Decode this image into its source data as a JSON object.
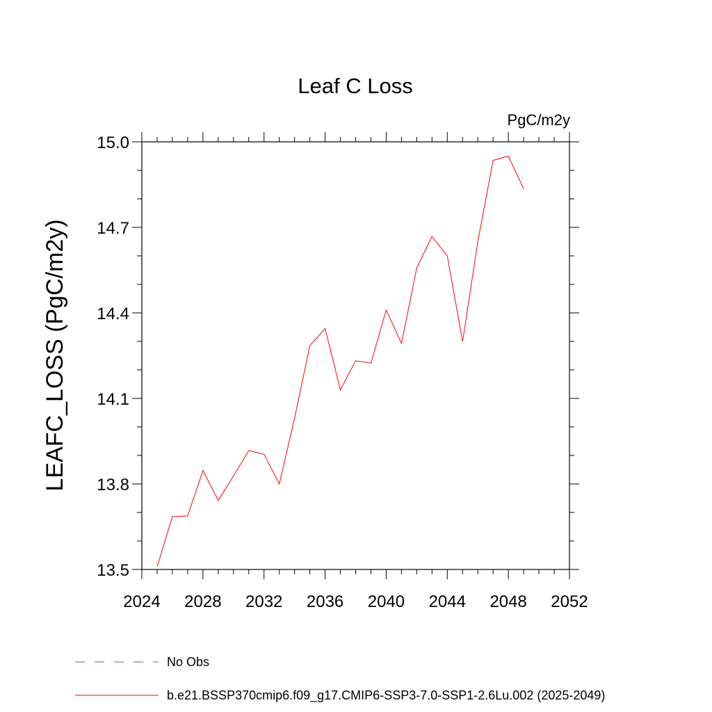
{
  "chart_data": {
    "type": "line",
    "title": "Leaf C Loss",
    "units_label": "PgC/m2y",
    "xlabel": "",
    "ylabel": "LEAFC_LOSS  (PgC/m2y)",
    "xlim": [
      2024,
      2052
    ],
    "ylim": [
      13.5,
      15.0
    ],
    "xticks": [
      2024,
      2028,
      2032,
      2036,
      2040,
      2044,
      2048,
      2052
    ],
    "yticks": [
      13.5,
      13.8,
      14.1,
      14.4,
      14.7,
      15.0
    ],
    "ytick_labels": [
      "13.5",
      "13.8",
      "14.1",
      "14.4",
      "14.7",
      "15.0"
    ],
    "grid": false,
    "legend_position": "bottom",
    "series": [
      {
        "name": "b.e21.BSSP370cmip6.f09_g17.CMIP6-SSP3-7.0-SSP1-2.6Lu.002 (2025-2049)",
        "color": "#ff0000",
        "style": "solid",
        "x": [
          2025,
          2026,
          2027,
          2028,
          2029,
          2030,
          2031,
          2032,
          2033,
          2034,
          2035,
          2036,
          2037,
          2038,
          2039,
          2040,
          2041,
          2042,
          2043,
          2044,
          2045,
          2046,
          2047,
          2048,
          2049
        ],
        "y": [
          13.51,
          13.685,
          13.688,
          13.847,
          13.742,
          13.828,
          13.917,
          13.904,
          13.8,
          14.03,
          14.285,
          14.345,
          14.13,
          14.232,
          14.224,
          14.41,
          14.293,
          14.558,
          14.668,
          14.6,
          14.3,
          14.65,
          14.935,
          14.95,
          14.835
        ]
      }
    ],
    "legend": [
      {
        "label": "No Obs",
        "color": "#6a5acd",
        "style": "dashed"
      },
      {
        "label": "b.e21.BSSP370cmip6.f09_g17.CMIP6-SSP3-7.0-SSP1-2.6Lu.002 (2025-2049)",
        "color": "#ff0000",
        "style": "solid"
      }
    ]
  }
}
